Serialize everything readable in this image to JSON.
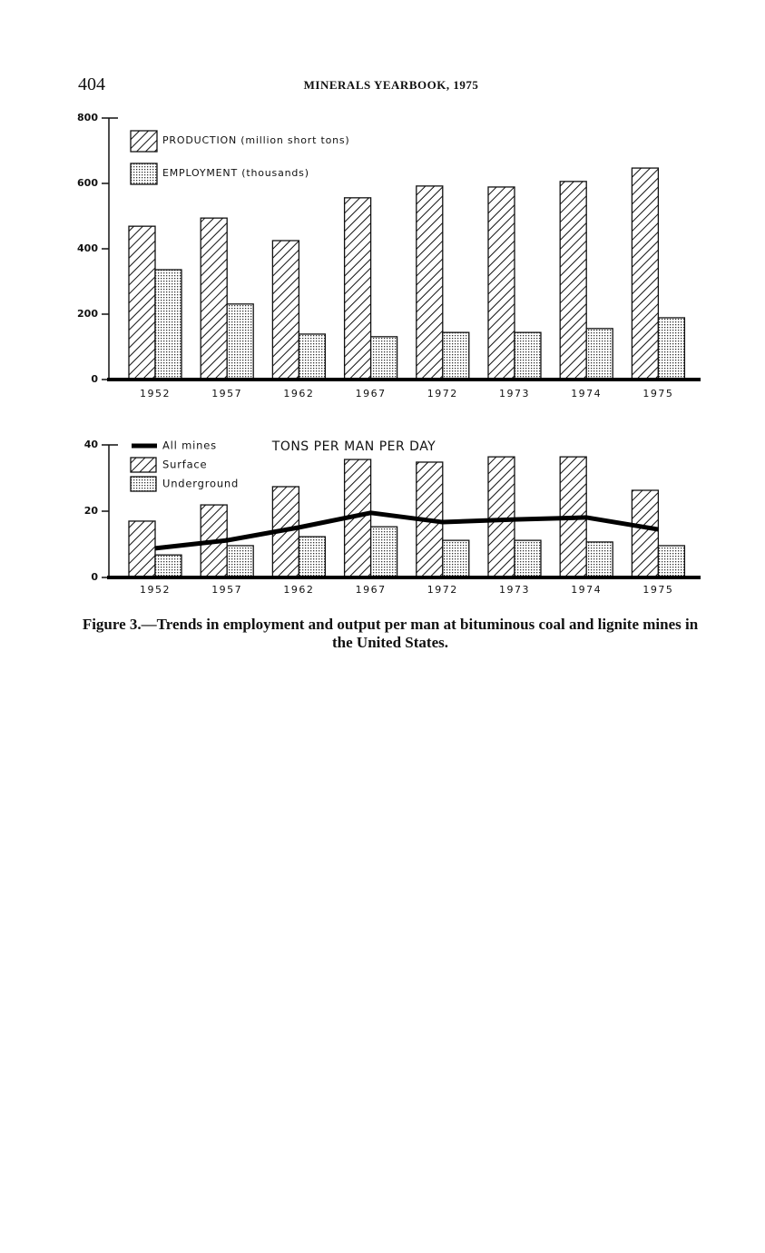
{
  "header": {
    "page_number": "404",
    "title": "MINERALS YEARBOOK, 1975"
  },
  "chart_data": [
    {
      "type": "bar",
      "categories": [
        "1952",
        "1957",
        "1962",
        "1967",
        "1972",
        "1973",
        "1974",
        "1975"
      ],
      "series": [
        {
          "name": "PRODUCTION (million short tons)",
          "color": "#111111",
          "pattern": "hatch",
          "values": [
            469,
            494,
            425,
            556,
            592,
            589,
            606,
            647
          ]
        },
        {
          "name": "EMPLOYMENT (thousands)",
          "color": "#111111",
          "pattern": "dots",
          "values": [
            336,
            231,
            139,
            131,
            144,
            144,
            156,
            189
          ]
        }
      ],
      "ylim": [
        0,
        800
      ],
      "yticks": [
        0,
        200,
        400,
        600,
        800
      ],
      "grid": false,
      "legend": "top-left"
    },
    {
      "type": "bar",
      "title": "TONS PER MAN PER DAY",
      "categories": [
        "1952",
        "1957",
        "1962",
        "1967",
        "1972",
        "1973",
        "1974",
        "1975"
      ],
      "series": [
        {
          "name": "All mines",
          "type": "line",
          "color": "#000000",
          "values": [
            8.8,
            11.2,
            15.1,
            19.5,
            16.7,
            17.5,
            18.1,
            14.5
          ]
        },
        {
          "name": "Surface",
          "color": "#111111",
          "pattern": "hatch",
          "values": [
            17,
            21.9,
            27.4,
            35.6,
            34.8,
            36.4,
            36.4,
            26.3
          ]
        },
        {
          "name": "Underground",
          "color": "#111111",
          "pattern": "dots",
          "values": [
            6.8,
            9.6,
            12.3,
            15.3,
            11.2,
            11.2,
            10.7,
            9.6
          ]
        }
      ],
      "ylim": [
        0,
        40
      ],
      "yticks": [
        0,
        20,
        40
      ],
      "grid": false,
      "legend": "top-left"
    }
  ],
  "caption": "Figure 3.—Trends in employment and output per man at bituminous coal and lignite mines in the United States."
}
